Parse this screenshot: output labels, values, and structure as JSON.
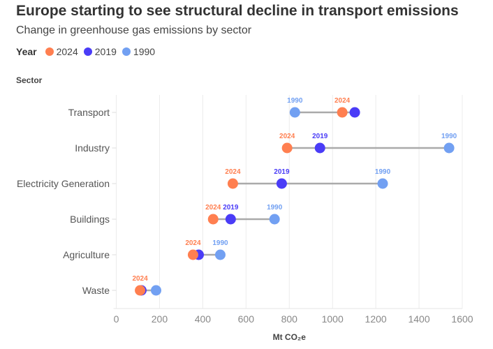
{
  "title": "Europe starting to see structural decline in transport emissions",
  "subtitle": "Change in greenhouse gas emissions by sector",
  "legend": {
    "title": "Year",
    "items": [
      {
        "label": "2024",
        "color": "#ff7f50"
      },
      {
        "label": "2019",
        "color": "#4a3cf7"
      },
      {
        "label": "1990",
        "color": "#72a0f2"
      }
    ]
  },
  "chart_data": {
    "type": "dumbbell",
    "ylabel": "Sector",
    "xlabel": "Mt CO₂e",
    "xlim": [
      0,
      1600
    ],
    "xticks": [
      "0",
      "200",
      "400",
      "600",
      "800",
      "1000",
      "1200",
      "1400",
      "1600"
    ],
    "grid": "vertical",
    "colors": {
      "2024": "#ff7f50",
      "2019": "#4a3cf7",
      "1990": "#72a0f2"
    },
    "categories": [
      "Transport",
      "Industry",
      "Electricity Generation",
      "Buildings",
      "Agriculture",
      "Waste"
    ],
    "series": [
      {
        "name": "1990",
        "values": [
          826,
          1539,
          1232,
          732,
          481,
          184
        ],
        "labeled": [
          true,
          true,
          true,
          true,
          true,
          false
        ]
      },
      {
        "name": "2019",
        "values": [
          1103,
          942,
          765,
          529,
          381,
          116
        ],
        "labeled": [
          false,
          true,
          true,
          true,
          false,
          false
        ]
      },
      {
        "name": "2024",
        "values": [
          1045,
          790,
          539,
          448,
          355,
          110
        ],
        "labeled": [
          true,
          true,
          true,
          true,
          true,
          true
        ]
      }
    ]
  }
}
